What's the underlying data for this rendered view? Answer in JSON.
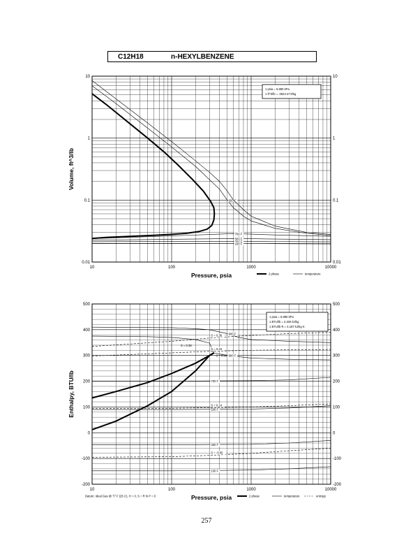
{
  "header": {
    "formula": "C12H18",
    "compound": "n-HEXYLBENZENE"
  },
  "page_number": "257",
  "chart_data": [
    {
      "type": "line",
      "xscale": "log",
      "yscale": "log",
      "xlim": [
        10,
        10000
      ],
      "ylim": [
        0.01,
        10
      ],
      "xlabel": "Pressure,  psia",
      "ylabel": "Volume, ft^3/lb",
      "xticks": [
        "10",
        "100",
        "1000",
        "10000"
      ],
      "yticks": [
        "0.01",
        "0.1",
        "1",
        "10"
      ],
      "conversion_notes": [
        "1 psia = 6.895 kPa",
        "1 ft^3/lb = .0624 m^3/kg"
      ],
      "legend": [
        {
          "label": "2 phase",
          "style": "thick"
        },
        {
          "label": "temperature",
          "style": "thin"
        }
      ],
      "series": [
        {
          "kind": "2phase",
          "x": [
            10,
            15,
            20,
            30,
            50,
            80,
            120,
            180,
            250,
            310,
            340,
            345,
            340,
            320,
            280,
            220,
            150,
            100,
            60,
            30,
            15,
            10
          ],
          "y": [
            5.2,
            3.5,
            2.6,
            1.7,
            1.0,
            0.6,
            0.37,
            0.22,
            0.14,
            0.095,
            0.075,
            0.06,
            0.048,
            0.039,
            0.034,
            0.031,
            0.029,
            0.028,
            0.027,
            0.026,
            0.025,
            0.024
          ]
        },
        {
          "kind": "temperature",
          "label": "800 F",
          "x": [
            10,
            20,
            50,
            100,
            200,
            400,
            500,
            600,
            800,
            1000,
            2000,
            5000,
            10000
          ],
          "y": [
            7.0,
            3.6,
            1.45,
            0.72,
            0.35,
            0.15,
            0.1,
            0.075,
            0.055,
            0.046,
            0.035,
            0.029,
            0.027
          ]
        },
        {
          "kind": "temperature",
          "label": "",
          "x": [
            10,
            20,
            50,
            100,
            200,
            300,
            400,
            500,
            600,
            800,
            1000,
            2000,
            5000,
            10000
          ],
          "y": [
            8.5,
            4.3,
            1.75,
            0.88,
            0.43,
            0.28,
            0.2,
            0.14,
            0.1,
            0.07,
            0.055,
            0.038,
            0.03,
            0.028
          ]
        },
        {
          "kind": "temperature",
          "label": "700 F",
          "x": [
            10,
            300,
            600,
            1000,
            2000,
            5000,
            10000
          ],
          "y": [
            0.0238,
            0.0278,
            0.0288,
            0.0282,
            0.0274,
            0.0266,
            0.026
          ]
        },
        {
          "kind": "temperature",
          "label": "500 F",
          "x": [
            10,
            300,
            600,
            1000,
            2000,
            5000,
            10000
          ],
          "y": [
            0.0225,
            0.0237,
            0.024,
            0.0238,
            0.0235,
            0.0232,
            0.023
          ]
        },
        {
          "kind": "temperature",
          "label": "300 F",
          "x": [
            10,
            600,
            1000,
            2000,
            5000,
            10000
          ],
          "y": [
            0.0213,
            0.0216,
            0.0216,
            0.0215,
            0.0213,
            0.0212
          ]
        },
        {
          "kind": "temperature",
          "label": "100 F",
          "x": [
            10,
            600,
            1000,
            2000,
            5000,
            10000
          ],
          "y": [
            0.0198,
            0.0199,
            0.0199,
            0.0198,
            0.0197,
            0.0196
          ]
        }
      ]
    },
    {
      "type": "line",
      "xscale": "log",
      "yscale": "linear",
      "xlim": [
        10,
        10000
      ],
      "ylim": [
        -200,
        500
      ],
      "xlabel": "Pressure,  psia",
      "ylabel": "Enthalpy, BTU/lb",
      "xticks": [
        "10",
        "100",
        "1000",
        "10000"
      ],
      "yticks": [
        "-200",
        "-100",
        "0",
        "100",
        "200",
        "300",
        "400",
        "500"
      ],
      "conversion_notes": [
        "1 psia = 6.895 kPa",
        "1 BTU/lb = 2.326 kJ/kg",
        "1 BTU/lb R = 4.187 kJ/kg K"
      ],
      "datum_note": "Datum: Ideal Gas @ 77 F (25 C),  H = 0,  S = R ln P = 0",
      "legend": [
        {
          "label": "2 phase",
          "style": "thick"
        },
        {
          "label": "temperature",
          "style": "thin"
        },
        {
          "label": "entropy",
          "style": "dashed"
        }
      ],
      "series": [
        {
          "kind": "2phase",
          "x": [
            10,
            20,
            50,
            100,
            200,
            300,
            340
          ],
          "y": [
            135,
            160,
            195,
            230,
            270,
            300,
            310
          ]
        },
        {
          "kind": "2phase",
          "x": [
            340,
            300,
            200,
            100,
            50,
            20,
            10
          ],
          "y": [
            310,
            300,
            240,
            160,
            105,
            45,
            12
          ]
        },
        {
          "kind": "temperature",
          "label": "900 F",
          "x": [
            10,
            100,
            200,
            300,
            500,
            700,
            1000,
            3000,
            10000
          ],
          "y": [
            410,
            408,
            404,
            400,
            385,
            370,
            362,
            355,
            350
          ]
        },
        {
          "kind": "temperature",
          "label": "800 F",
          "x": [
            10,
            50,
            100,
            200,
            300,
            340,
            500,
            1000,
            3000,
            10000
          ],
          "y": [
            375,
            373,
            370,
            362,
            348,
            310,
            300,
            290,
            285,
            283
          ]
        },
        {
          "kind": "temperature",
          "label": "700 F",
          "x": [
            10,
            100,
            300,
            1000,
            3000,
            10000
          ],
          "y": [
            200,
            200,
            201,
            202,
            205,
            215
          ]
        },
        {
          "kind": "temperature",
          "label": "500 F",
          "x": [
            10,
            100,
            300,
            1000,
            3000,
            10000
          ],
          "y": [
            90,
            90,
            91,
            92,
            96,
            105
          ]
        },
        {
          "kind": "temperature",
          "label": "300 F",
          "x": [
            10,
            100,
            300,
            1000,
            3000,
            10000
          ],
          "y": [
            -47,
            -47,
            -46,
            -45,
            -40,
            -30
          ]
        },
        {
          "kind": "temperature",
          "label": "100 F",
          "x": [
            10,
            100,
            300,
            1000,
            3000,
            10000
          ],
          "y": [
            -148,
            -148,
            -147,
            -145,
            -140,
            -132
          ]
        },
        {
          "kind": "entropy",
          "label": "S = 0.36",
          "x": [
            10,
            100,
            300,
            1000,
            3000,
            10000
          ],
          "y": [
            335,
            355,
            368,
            378,
            385,
            390
          ]
        },
        {
          "kind": "entropy",
          "label": "S = 0.34",
          "x": [
            10,
            100,
            300,
            1000,
            3000,
            10000
          ],
          "y": [
            298,
            310,
            316,
            320,
            322,
            323
          ]
        },
        {
          "kind": "entropy",
          "label": "S = 0.14",
          "x": [
            10,
            100,
            300,
            1000,
            3000,
            10000
          ],
          "y": [
            95,
            95,
            97,
            100,
            105,
            112
          ]
        },
        {
          "kind": "entropy",
          "label": "S = -0.05",
          "x": [
            10,
            100,
            300,
            1000,
            3000,
            10000
          ],
          "y": [
            -95,
            -93,
            -88,
            -80,
            -70,
            -60
          ]
        }
      ],
      "annotations": [
        {
          "text": "S = 0.29",
          "x": 360,
          "y": 295
        },
        {
          "text": "S = 0.38",
          "x": 130,
          "y": 335
        }
      ]
    }
  ]
}
